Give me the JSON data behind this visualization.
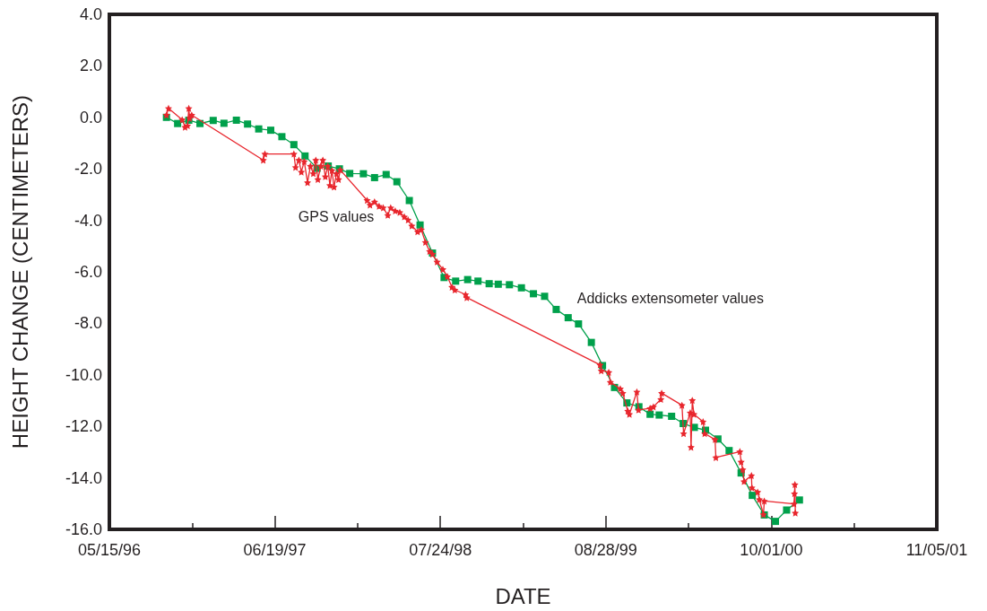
{
  "chart_data": {
    "type": "line",
    "xlabel": "DATE",
    "ylabel": "HEIGHT CHANGE (CENTIMETERS)",
    "xlim": [
      "1996-05-15",
      "2001-11-05"
    ],
    "xticks": [
      {
        "value": "1996-05-15",
        "label": "05/15/96"
      },
      {
        "value": "1996-12-01",
        "label": null
      },
      {
        "value": "1997-06-19",
        "label": "06/19/97"
      },
      {
        "value": "1998-01-05",
        "label": null
      },
      {
        "value": "1998-07-24",
        "label": "07/24/98"
      },
      {
        "value": "1999-02-09",
        "label": null
      },
      {
        "value": "1999-08-28",
        "label": "08/28/99"
      },
      {
        "value": "2000-03-15",
        "label": null
      },
      {
        "value": "2000-10-01",
        "label": "10/01/00"
      },
      {
        "value": "2001-04-19",
        "label": null
      },
      {
        "value": "2001-11-05",
        "label": "11/05/01"
      }
    ],
    "ylim": [
      -16,
      4
    ],
    "yticks": [
      {
        "value": -16,
        "label": "-16.0"
      },
      {
        "value": -14,
        "label": "-14.0"
      },
      {
        "value": -12,
        "label": "-12.0"
      },
      {
        "value": -10,
        "label": "-10.0"
      },
      {
        "value": -8,
        "label": "-8.0"
      },
      {
        "value": -6,
        "label": "-6.0"
      },
      {
        "value": -4,
        "label": "-4.0"
      },
      {
        "value": -2,
        "label": "-2.0"
      },
      {
        "value": 0,
        "label": "0.0"
      },
      {
        "value": 2,
        "label": "2.0"
      },
      {
        "value": 4,
        "label": "4.0"
      }
    ],
    "grid": false,
    "series": [
      {
        "name": "GPS values",
        "color": "#e8262d",
        "marker": "star",
        "x": [
          "1996-09-30",
          "1996-10-05",
          "1996-11-07",
          "1996-11-14",
          "1996-11-20",
          "1996-11-23",
          "1996-11-25",
          "1996-11-30",
          "1997-05-22",
          "1997-05-26",
          "1997-08-04",
          "1997-08-08",
          "1997-08-16",
          "1997-08-22",
          "1997-08-29",
          "1997-09-06",
          "1997-09-13",
          "1997-09-20",
          "1997-09-26",
          "1997-10-01",
          "1997-10-08",
          "1997-10-13",
          "1997-10-19",
          "1997-10-25",
          "1997-10-30",
          "1997-11-04",
          "1997-11-09",
          "1997-11-15",
          "1997-11-20",
          "1997-11-24",
          "1998-01-28",
          "1998-02-04",
          "1998-02-15",
          "1998-02-26",
          "1998-03-08",
          "1998-03-19",
          "1998-03-26",
          "1998-04-06",
          "1998-04-17",
          "1998-04-28",
          "1998-05-07",
          "1998-05-16",
          "1998-05-30",
          "1998-06-08",
          "1998-06-18",
          "1998-06-28",
          "1998-07-05",
          "1998-07-16",
          "1998-07-30",
          "1998-08-10",
          "1998-08-21",
          "1998-08-28",
          "1998-09-23",
          "1998-09-26",
          "1999-08-14",
          "1999-08-17",
          "1999-09-04",
          "1999-09-08",
          "1999-10-02",
          "1999-10-08",
          "1999-10-20",
          "1999-10-24",
          "1999-11-11",
          "1999-11-15",
          "1999-12-13",
          "1999-12-21",
          "2000-01-08",
          "2000-01-10",
          "2000-02-28",
          "2000-03-03",
          "2000-03-19",
          "2000-03-21",
          "2000-03-24",
          "2000-03-28",
          "2000-04-19",
          "2000-04-23",
          "2000-05-18",
          "2000-05-20",
          "2000-07-17",
          "2000-07-20",
          "2000-07-24",
          "2000-07-27",
          "2000-08-14",
          "2000-08-15",
          "2000-08-29",
          "2000-09-02",
          "2000-09-12",
          "2000-09-14",
          "2000-11-25",
          "2000-11-26",
          "2000-11-27",
          "2000-11-28"
        ],
        "values": [
          0.09,
          0.35,
          -0.09,
          -0.38,
          -0.32,
          0.35,
          -0.03,
          0.09,
          -1.66,
          -1.42,
          -1.42,
          -1.94,
          -1.66,
          -2.12,
          -1.71,
          -2.53,
          -1.89,
          -2.18,
          -1.66,
          -2.41,
          -1.89,
          -1.66,
          -2.3,
          -1.89,
          -2.64,
          -2.06,
          -2.7,
          -2.18,
          -2.41,
          -2.04,
          -3.22,
          -3.4,
          -3.28,
          -3.45,
          -3.51,
          -3.8,
          -3.51,
          -3.63,
          -3.69,
          -3.86,
          -3.98,
          -4.21,
          -4.44,
          -4.36,
          -4.85,
          -5.2,
          -5.31,
          -5.61,
          -5.9,
          -6.18,
          -6.59,
          -6.7,
          -6.88,
          -7.0,
          -9.61,
          -9.84,
          -9.9,
          -10.28,
          -10.54,
          -10.71,
          -11.4,
          -11.53,
          -10.66,
          -11.36,
          -11.3,
          -11.24,
          -10.95,
          -10.71,
          -11.18,
          -12.28,
          -11.47,
          -12.81,
          -10.99,
          -11.53,
          -11.82,
          -12.28,
          -12.51,
          -13.21,
          -12.98,
          -13.38,
          -13.68,
          -14.14,
          -13.91,
          -14.38,
          -14.55,
          -14.84,
          -15.42,
          -14.9,
          -15.01,
          -14.61,
          -14.26,
          -15.36
        ]
      },
      {
        "name": "Addicks extensometer values",
        "color": "#00a04b",
        "marker": "square",
        "x": [
          "1996-09-30",
          "1996-10-27",
          "1996-11-23",
          "1996-12-20",
          "1997-01-21",
          "1997-02-16",
          "1997-03-18",
          "1997-04-14",
          "1997-05-11",
          "1997-06-09",
          "1997-07-06",
          "1997-08-04",
          "1997-08-31",
          "1997-09-29",
          "1997-10-26",
          "1997-11-22",
          "1997-12-17",
          "1998-01-19",
          "1998-02-15",
          "1998-03-15",
          "1998-04-10",
          "1998-05-10",
          "1998-06-05",
          "1998-07-05",
          "1998-08-02",
          "1998-08-30",
          "1998-09-28",
          "1998-10-23",
          "1998-11-19",
          "1998-12-11",
          "1999-01-07",
          "1999-02-05",
          "1999-03-06",
          "1999-04-02",
          "1999-04-30",
          "1999-05-29",
          "1999-06-23",
          "1999-07-24",
          "1999-08-20",
          "1999-09-18",
          "1999-10-18",
          "1999-11-16",
          "1999-12-13",
          "2000-01-04",
          "2000-02-03",
          "2000-03-02",
          "2000-03-29",
          "2000-04-25",
          "2000-05-25",
          "2000-06-21",
          "2000-07-20",
          "2000-08-16",
          "2000-09-14",
          "2000-10-11",
          "2000-11-07",
          "2000-12-08"
        ],
        "values": [
          0.0,
          -0.24,
          -0.11,
          -0.24,
          -0.12,
          -0.23,
          -0.11,
          -0.26,
          -0.45,
          -0.5,
          -0.75,
          -1.06,
          -1.5,
          -1.98,
          -1.89,
          -2.0,
          -2.18,
          -2.19,
          -2.34,
          -2.22,
          -2.5,
          -3.23,
          -4.18,
          -5.27,
          -6.22,
          -6.36,
          -6.3,
          -6.36,
          -6.46,
          -6.48,
          -6.5,
          -6.62,
          -6.85,
          -6.95,
          -7.46,
          -7.78,
          -8.02,
          -8.74,
          -9.64,
          -10.49,
          -11.09,
          -11.24,
          -11.53,
          -11.56,
          -11.61,
          -11.89,
          -12.04,
          -12.15,
          -12.49,
          -12.94,
          -13.81,
          -14.68,
          -15.44,
          -15.69,
          -15.25,
          -14.86
        ]
      }
    ]
  }
}
